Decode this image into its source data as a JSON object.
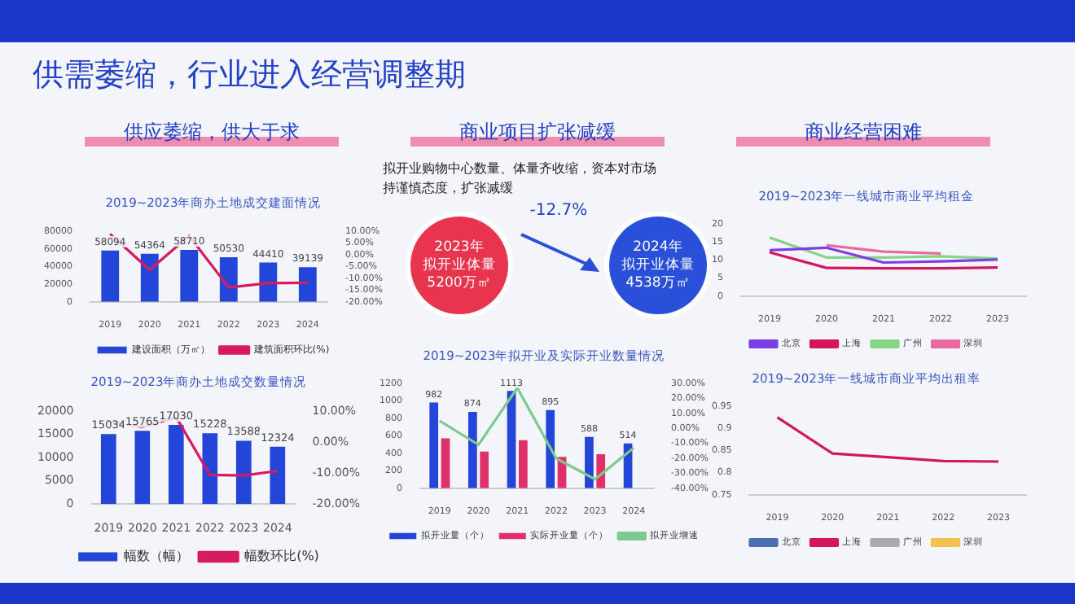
{
  "chart_data": [
    {
      "type": "other",
      "title": "供需萎缩，行业进入经营调整期",
      "annotations": [
        "供应萎缩，供大于求",
        "商业项目扩张减缓",
        "商业经营困难"
      ]
    },
    {
      "type": "bar",
      "title": "2019~2023年商办土地成交建面情况",
      "categories": [
        "2019",
        "2020",
        "2021",
        "2022",
        "2023",
        "2024"
      ],
      "series": [
        {
          "name": "建设面积（万㎡）",
          "color": "#2446d8",
          "values": [
            58094,
            54364,
            58710,
            50530,
            44410,
            39139
          ],
          "value_labels": [
            "58094",
            "54364",
            "58710",
            "50530",
            "44410",
            "39139"
          ]
        },
        {
          "name": "建筑面积环比(%)",
          "type": "line",
          "axis": "y2",
          "color": "#d81b60",
          "values": [
            8.8,
            -6.4,
            8.0,
            -13.9,
            -12.1,
            -11.9
          ]
        }
      ],
      "ylim": [
        0,
        80000
      ],
      "yticks": [
        0,
        20000,
        40000,
        60000,
        80000
      ],
      "y2lim": [
        -20,
        10
      ],
      "y2ticks": [
        {
          "value": 10,
          "label": "10.00%"
        },
        {
          "value": 5,
          "label": "5.00%"
        },
        {
          "value": 0,
          "label": "0.00%"
        },
        {
          "value": -5,
          "label": "-5.00%"
        },
        {
          "value": -10,
          "label": "-10.00%"
        },
        {
          "value": -15,
          "label": "-15.00%"
        },
        {
          "value": -20,
          "label": "-20.00%"
        }
      ],
      "legend": "bottom",
      "marker": "none"
    },
    {
      "type": "bar",
      "title": "2019~2023年商办土地成交数量情况",
      "categories": [
        "2019",
        "2020",
        "2021",
        "2022",
        "2023",
        "2024"
      ],
      "series": [
        {
          "name": "幅数（幅）",
          "color": "#2446d8",
          "values": [
            15034,
            15765,
            17030,
            15228,
            13588,
            12324
          ],
          "value_labels": [
            "15034",
            "15765",
            "17030",
            "15228",
            "13588",
            "12324"
          ]
        },
        {
          "name": "幅数环比(%)",
          "type": "line",
          "axis": "y2",
          "color": "#d81b60",
          "values": [
            6.5,
            4.9,
            8.0,
            -10.6,
            -10.8,
            -9.3
          ]
        }
      ],
      "ylim": [
        0,
        20000
      ],
      "yticks": [
        0,
        5000,
        10000,
        15000,
        20000
      ],
      "y2lim": [
        -20,
        10
      ],
      "y2ticks": [
        {
          "value": 10,
          "label": "10.00%"
        },
        {
          "value": 0,
          "label": "0.00%"
        },
        {
          "value": -10,
          "label": "-10.00%"
        },
        {
          "value": -20,
          "label": "-20.00%"
        }
      ],
      "legend": "bottom",
      "marker": "none"
    },
    {
      "type": "other",
      "title": "拟开业购物中心数量、体量齐收缩，资本对市场持谨慎态度，扩张减缓",
      "annotations": [
        "2023年",
        "拟开业体量",
        "5200万㎡",
        "-12.7%",
        "2024年",
        "拟开业体量",
        "4538万㎡"
      ]
    },
    {
      "type": "bar",
      "title": "2019~2023年拟开业及实际开业数量情况",
      "categories": [
        "2019",
        "2020",
        "2021",
        "2022",
        "2023",
        "2024"
      ],
      "series": [
        {
          "name": "拟开业量（个）",
          "color": "#2446d8",
          "values": [
            982,
            874,
            1113,
            895,
            588,
            514
          ],
          "value_labels": [
            "982",
            "874",
            "1113",
            "895",
            "588",
            "514"
          ]
        },
        {
          "name": "实际开业量（个）",
          "color": "#e0306a",
          "values": [
            570,
            420,
            550,
            360,
            390,
            null
          ]
        },
        {
          "name": "拟开业增速",
          "type": "line",
          "axis": "y2",
          "color": "#7dc98f",
          "values": [
            5,
            -11,
            27,
            -20,
            -34,
            -13
          ]
        }
      ],
      "ylim": [
        0,
        1200
      ],
      "yticks": [
        0,
        200,
        400,
        600,
        800,
        1000,
        1200
      ],
      "y2lim": [
        -40,
        30
      ],
      "y2ticks": [
        {
          "value": 30,
          "label": "30.00%"
        },
        {
          "value": 20,
          "label": "20.00%"
        },
        {
          "value": 10,
          "label": "10.00%"
        },
        {
          "value": 0,
          "label": "0.00%"
        },
        {
          "value": -10,
          "label": "-10.00%"
        },
        {
          "value": -20,
          "label": "-20.00%"
        },
        {
          "value": -30,
          "label": "-30.00%"
        },
        {
          "value": -40,
          "label": "-40.00%"
        }
      ],
      "legend": "bottom",
      "marker": "none"
    },
    {
      "type": "line",
      "title": "2019~2023年一线城市商业平均租金",
      "categories": [
        "2019",
        "2020",
        "2021",
        "2022",
        "2023"
      ],
      "series": [
        {
          "name": "北京",
          "color": "#7b3fe4",
          "values": [
            12.7,
            13.4,
            9.3,
            9.6,
            10.1
          ]
        },
        {
          "name": "上海",
          "color": "#d2185a",
          "values": [
            12.1,
            7.8,
            7.7,
            7.7,
            7.9
          ]
        },
        {
          "name": "广州",
          "color": "#86d486",
          "values": [
            16.2,
            10.7,
            10.7,
            11.0,
            10.4
          ]
        },
        {
          "name": "深圳",
          "color": "#e86aa0",
          "values": [
            null,
            14.1,
            12.3,
            11.8,
            null
          ]
        }
      ],
      "ylim": [
        0,
        20
      ],
      "yticks": [
        0,
        5,
        10,
        15,
        20
      ],
      "legend": "bottom",
      "marker": "none"
    },
    {
      "type": "line",
      "title": "2019~2023年一线城市商业平均出租率",
      "categories": [
        "2019",
        "2020",
        "2021",
        "2022",
        "2023"
      ],
      "series": [
        {
          "name": "北京",
          "color": "#4a6fb5",
          "values": [
            null,
            null,
            null,
            null,
            null
          ]
        },
        {
          "name": "上海",
          "color": "#d2185a",
          "values": [
            0.925,
            0.843,
            0.835,
            0.826,
            0.825
          ]
        },
        {
          "name": "广州",
          "color": "#aaaaaa",
          "values": [
            null,
            null,
            null,
            null,
            null
          ]
        },
        {
          "name": "深圳",
          "color": "#f2c14e",
          "values": [
            null,
            null,
            null,
            null,
            null
          ]
        }
      ],
      "ylim": [
        0.75,
        0.95
      ],
      "yticks": [
        0.75,
        0.8,
        0.85,
        0.9,
        0.95
      ],
      "legend": "bottom",
      "marker": "none"
    }
  ]
}
